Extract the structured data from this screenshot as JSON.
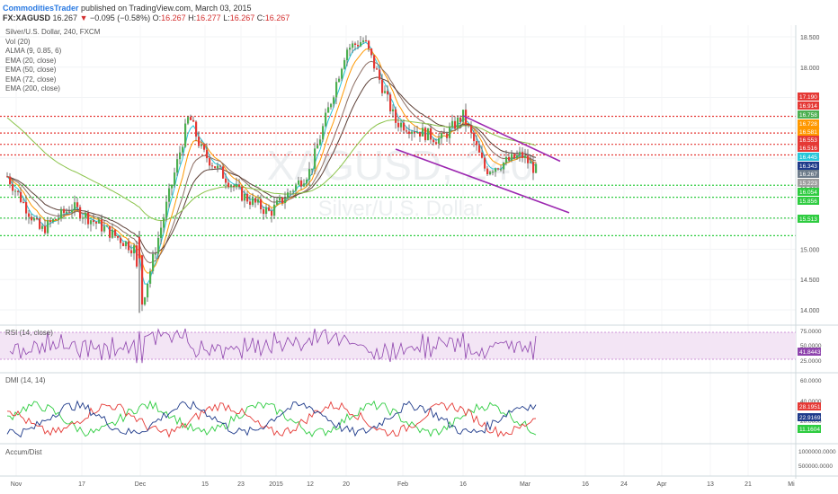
{
  "header": {
    "publisher": "CommoditiesTrader",
    "published_text": "published on TradingView.com, March 03, 2015",
    "symbol": "FX:XAGUSD",
    "last": "16.267",
    "change": "−0.095 (−0.58%)",
    "open_label": "O:",
    "open": "16.267",
    "high_label": "H:",
    "high": "16.277",
    "low_label": "L:",
    "low": "16.267",
    "close_label": "C:",
    "close": "16.267"
  },
  "main_legend": [
    "Silver/U.S. Dollar, 240, FXCM",
    "Vol (20)",
    "ALMA (9, 0.85, 6)",
    "EMA (20, close)",
    "EMA (50, close)",
    "EMA (72, close)",
    "EMA (200, close)"
  ],
  "watermark": {
    "symbol": "XAGUSD, 240",
    "name": "Silver/U.S. Dollar"
  },
  "colors": {
    "up": "#4caf50",
    "down": "#e53935",
    "alma": "#26c6da",
    "ema20": "#ff9800",
    "ema50": "#8d6e63",
    "ema72": "#5d4037",
    "ema200": "#8bc34a",
    "resistance": "#e53935",
    "support": "#2ecc40",
    "channel": "#9c27b0",
    "rsi": "#8e44ad",
    "dmi_plus": "#2ecc40",
    "dmi_minus": "#e53935",
    "adx": "#1e3a8a"
  },
  "price_axis": {
    "ticks": [
      "18.500",
      "18.000",
      "17.500",
      "17.000",
      "16.500",
      "16.000",
      "15.500",
      "15.000",
      "14.500",
      "14.000"
    ]
  },
  "level_tags": [
    {
      "text": "17.190",
      "color": "#e53935"
    },
    {
      "text": "16.914",
      "color": "#e53935"
    },
    {
      "text": "16.758",
      "color": "#4caf50"
    },
    {
      "text": "16.728",
      "color": "#ff9800"
    },
    {
      "text": "16.581",
      "color": "#ff9800"
    },
    {
      "text": "16.553",
      "color": "#e53935"
    },
    {
      "text": "16.516",
      "color": "#e53935"
    },
    {
      "text": "16.445",
      "color": "#26c6da"
    },
    {
      "text": "16.343",
      "color": "#1e3a8a"
    },
    {
      "text": "16.267",
      "color": "#6d7b8a"
    },
    {
      "text": "15.223",
      "color": "#9e9e9e"
    },
    {
      "text": "16.054",
      "color": "#2ecc40"
    },
    {
      "text": "15.856",
      "color": "#2ecc40"
    },
    {
      "text": "15.513",
      "color": "#2ecc40"
    }
  ],
  "rsi_panel": {
    "label": "RSI (14, close)",
    "ticks": [
      "75.0000",
      "50.0000",
      "25.0000"
    ],
    "value": "41.8443"
  },
  "dmi_panel": {
    "label": "DMI (14, 14)",
    "ticks": [
      "60.0000",
      "40.0000",
      "20.0000"
    ],
    "values": [
      "28.1951",
      "22.9169",
      "11.1604"
    ]
  },
  "accum_panel": {
    "label": "Accum/Dist",
    "ticks": [
      "1000000.0000",
      "500000.0000"
    ]
  },
  "time_axis": [
    "Nov",
    "17",
    "Dec",
    "15",
    "23",
    "2015",
    "12",
    "20",
    "Feb",
    "16",
    "Mar",
    "16",
    "24",
    "Apr",
    "13",
    "21",
    "Mi"
  ],
  "chart_data": {
    "type": "candlestick",
    "title": "Silver/U.S. Dollar, 240, FXCM",
    "symbol": "FX:XAGUSD",
    "x_range": [
      "Nov 2014",
      "Apr 2015"
    ],
    "ylim": [
      13.9,
      18.7
    ],
    "last_close": 16.267,
    "key_points": [
      {
        "date": "Nov 2014",
        "price": 16.2
      },
      {
        "date": "Nov 10",
        "price": 15.3
      },
      {
        "date": "Nov 20",
        "price": 15.7
      },
      {
        "date": "Dec 1",
        "price": 15.0
      },
      {
        "date": "Dec 1 low",
        "price": 14.0
      },
      {
        "date": "Dec 10",
        "price": 17.2
      },
      {
        "date": "Dec 15",
        "price": 16.6
      },
      {
        "date": "Dec 22",
        "price": 15.9
      },
      {
        "date": "Jan 1 2015",
        "price": 15.6
      },
      {
        "date": "Jan 12",
        "price": 16.3
      },
      {
        "date": "Jan 20",
        "price": 18.3
      },
      {
        "date": "Jan 23",
        "price": 18.45
      },
      {
        "date": "Feb 1",
        "price": 17.1
      },
      {
        "date": "Feb 10",
        "price": 16.8
      },
      {
        "date": "Feb 16",
        "price": 17.2
      },
      {
        "date": "Feb 20",
        "price": 16.3
      },
      {
        "date": "Feb 27",
        "price": 16.55
      },
      {
        "date": "Mar 3",
        "price": 16.267
      }
    ],
    "horizontal_levels": {
      "resistance": [
        17.19,
        16.914,
        16.728,
        16.553
      ],
      "support": [
        15.223,
        16.054,
        15.856,
        15.513
      ]
    },
    "channel": {
      "upper": [
        [
          "Feb 16",
          17.2
        ],
        [
          "Mar 12",
          16.45
        ]
      ],
      "lower": [
        [
          "Feb 1",
          16.65
        ],
        [
          "Mar 16",
          15.6
        ]
      ]
    },
    "indicators": {
      "rsi": 41.8443,
      "dmi": [
        28.1951,
        22.9169,
        11.1604
      ]
    }
  }
}
